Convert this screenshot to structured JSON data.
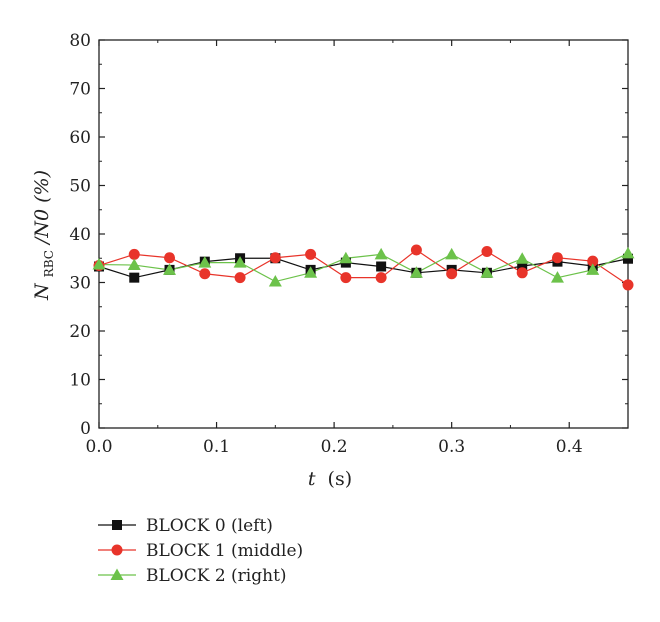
{
  "chart_data": {
    "type": "line",
    "xlabel": {
      "var": "t",
      "unit": "(s)"
    },
    "ylabel": {
      "var": "N",
      "sub": "RBC",
      "rest": "/N0 (%)"
    },
    "xlim": [
      0.0,
      0.45
    ],
    "ylim": [
      0,
      80
    ],
    "xticks": [
      0.0,
      0.1,
      0.2,
      0.3,
      0.4
    ],
    "xtick_labels": [
      "0.0",
      "0.1",
      "0.2",
      "0.3",
      "0.4"
    ],
    "yticks": [
      0,
      10,
      20,
      30,
      40,
      50,
      60,
      70,
      80
    ],
    "ytick_labels": [
      "0",
      "10",
      "20",
      "30",
      "40",
      "50",
      "60",
      "70",
      "80"
    ],
    "grid": false,
    "legend_position": "below",
    "x": [
      0.0,
      0.03,
      0.06,
      0.09,
      0.12,
      0.15,
      0.18,
      0.21,
      0.24,
      0.27,
      0.3,
      0.33,
      0.36,
      0.39,
      0.42,
      0.45
    ],
    "series": [
      {
        "name": "BLOCK 0 (left)",
        "color": "#111111",
        "marker": "square",
        "values": [
          33.3,
          31.0,
          32.6,
          34.3,
          35.0,
          35.0,
          32.6,
          34.1,
          33.3,
          32.0,
          32.6,
          32.0,
          33.4,
          34.3,
          33.4,
          34.9
        ]
      },
      {
        "name": "BLOCK 1 (middle)",
        "color": "#e8342a",
        "marker": "circle",
        "values": [
          33.5,
          35.8,
          35.1,
          31.8,
          31.0,
          35.1,
          35.8,
          31.0,
          31.0,
          36.7,
          31.8,
          36.4,
          32.0,
          35.1,
          34.4,
          29.5
        ]
      },
      {
        "name": "BLOCK 2 (right)",
        "color": "#6cc24a",
        "marker": "triangle",
        "values": [
          33.7,
          33.6,
          32.6,
          34.1,
          34.1,
          30.2,
          32.0,
          35.0,
          35.8,
          32.0,
          35.8,
          32.0,
          34.9,
          31.0,
          32.6,
          36.0
        ]
      }
    ]
  }
}
